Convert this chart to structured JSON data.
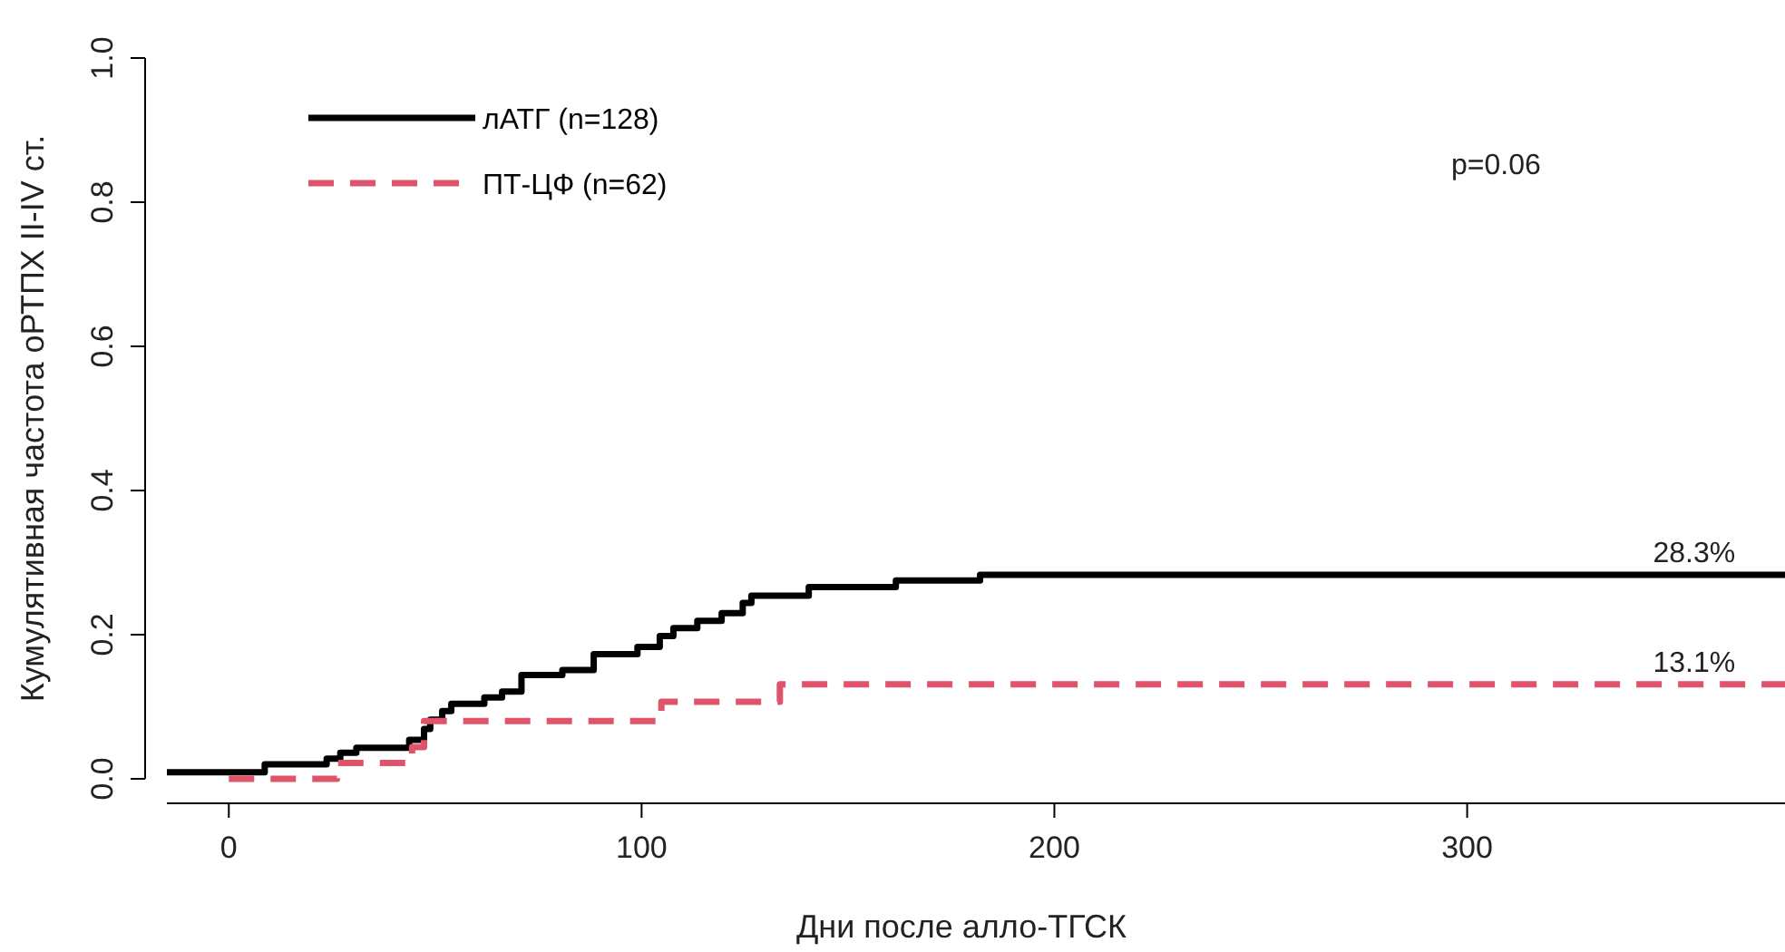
{
  "chart_data": {
    "type": "step",
    "xlabel": "Дни после алло-ТГСК",
    "ylabel": "Кумулятивная частота оРТПХ II-IV ст.",
    "xlim": [
      -15,
      377
    ],
    "xticks": [
      0,
      100,
      200,
      300
    ],
    "ylim": [
      -0.034,
      1
    ],
    "yticks": [
      {
        "value": 0,
        "label": "0.0"
      },
      0.2,
      0.4,
      0.6,
      0.8,
      {
        "value": 1,
        "label": "1.0"
      }
    ],
    "legend": "top left",
    "grid": false,
    "series": [
      {
        "name": "лАТГ (n=128)",
        "color": "#000000",
        "line_style": "solid",
        "x": [
          -15,
          8.7,
          23.7,
          27,
          30.9,
          43.7,
          47.3,
          48.8,
          51.7,
          53.9,
          61.9,
          66.2,
          70.9,
          80.8,
          88.4,
          99,
          104.4,
          107.7,
          113.5,
          119.4,
          124.5,
          126.6,
          140.5,
          161.6,
          182,
          377
        ],
        "values": [
          0.009,
          0.02,
          0.028,
          0.036,
          0.043,
          0.054,
          0.069,
          0.082,
          0.094,
          0.104,
          0.113,
          0.121,
          0.144,
          0.151,
          0.173,
          0.183,
          0.198,
          0.209,
          0.219,
          0.23,
          0.244,
          0.254,
          0.266,
          0.275,
          0.283,
          0.283
        ]
      },
      {
        "name": "ПТ-ЦФ (n=62)",
        "color": "#df536b",
        "line_style": "dashed",
        "x": [
          0,
          26.2,
          44.4,
          47.3,
          104.8,
          133.5,
          377
        ],
        "values": [
          0,
          0.022,
          0.044,
          0.08,
          0.107,
          0.131,
          0.131
        ]
      }
    ],
    "annotations": [
      "p=0.06",
      {
        "text": "28.3%",
        "x": 355,
        "y": 0.283
      },
      {
        "text": "13.1%",
        "x": 355,
        "y": 0.131
      }
    ]
  }
}
